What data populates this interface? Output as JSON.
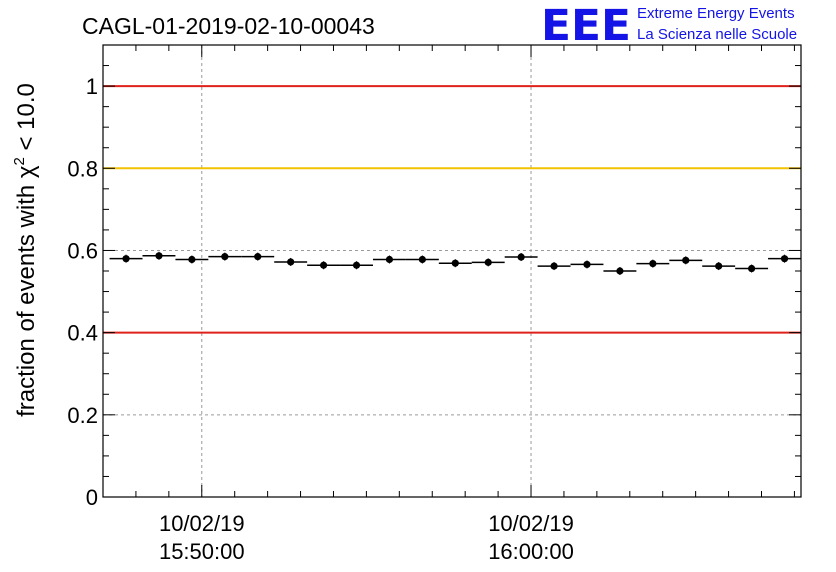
{
  "header": {
    "title": "CAGL-01-2019-02-10-00043"
  },
  "logo": {
    "mark": "EEE",
    "line1": "Extreme Energy Events",
    "line2": "La Scienza nelle Scuole",
    "color": "#1414e6"
  },
  "chart_data": {
    "type": "scatter",
    "ylabel": "fraction of events with χ² < 10.0",
    "ylabel_parts": {
      "pre": "fraction of events with χ",
      "sup": "2",
      "post": " < 10.0"
    },
    "ylim": [
      0,
      1.1
    ],
    "xlim_minutes": [
      -3.0,
      18.2
    ],
    "y_ticks": [
      0,
      0.2,
      0.4,
      0.6,
      0.8,
      1
    ],
    "y_tick_labels": [
      "0",
      "0.2",
      "0.4",
      "0.6",
      "0.8",
      "1"
    ],
    "x_tick_labels": [
      {
        "date": "10/02/19",
        "time": "15:50:00",
        "minutes": 0
      },
      {
        "date": "10/02/19",
        "time": "16:00:00",
        "minutes": 10
      }
    ],
    "x_unit_note": "x values are minutes after 15:50:00",
    "grid": true,
    "reference_lines": [
      {
        "y": 1.0,
        "color": "#e0201a"
      },
      {
        "y": 0.8,
        "color": "#f2c200"
      },
      {
        "y": 0.4,
        "color": "#e0201a"
      }
    ],
    "bin_width_minutes": 1.0,
    "series": [
      {
        "marker_color": "#000000",
        "x": [
          -2.3,
          -1.3,
          -0.3,
          0.7,
          1.7,
          2.7,
          3.7,
          4.7,
          5.7,
          6.7,
          7.7,
          8.7,
          9.7,
          10.7,
          11.7,
          12.7,
          13.7,
          14.7,
          15.7,
          16.7,
          17.7
        ],
        "y": [
          0.58,
          0.587,
          0.578,
          0.585,
          0.585,
          0.572,
          0.564,
          0.564,
          0.578,
          0.578,
          0.569,
          0.571,
          0.584,
          0.562,
          0.566,
          0.55,
          0.568,
          0.576,
          0.562,
          0.556,
          0.58
        ]
      }
    ]
  }
}
